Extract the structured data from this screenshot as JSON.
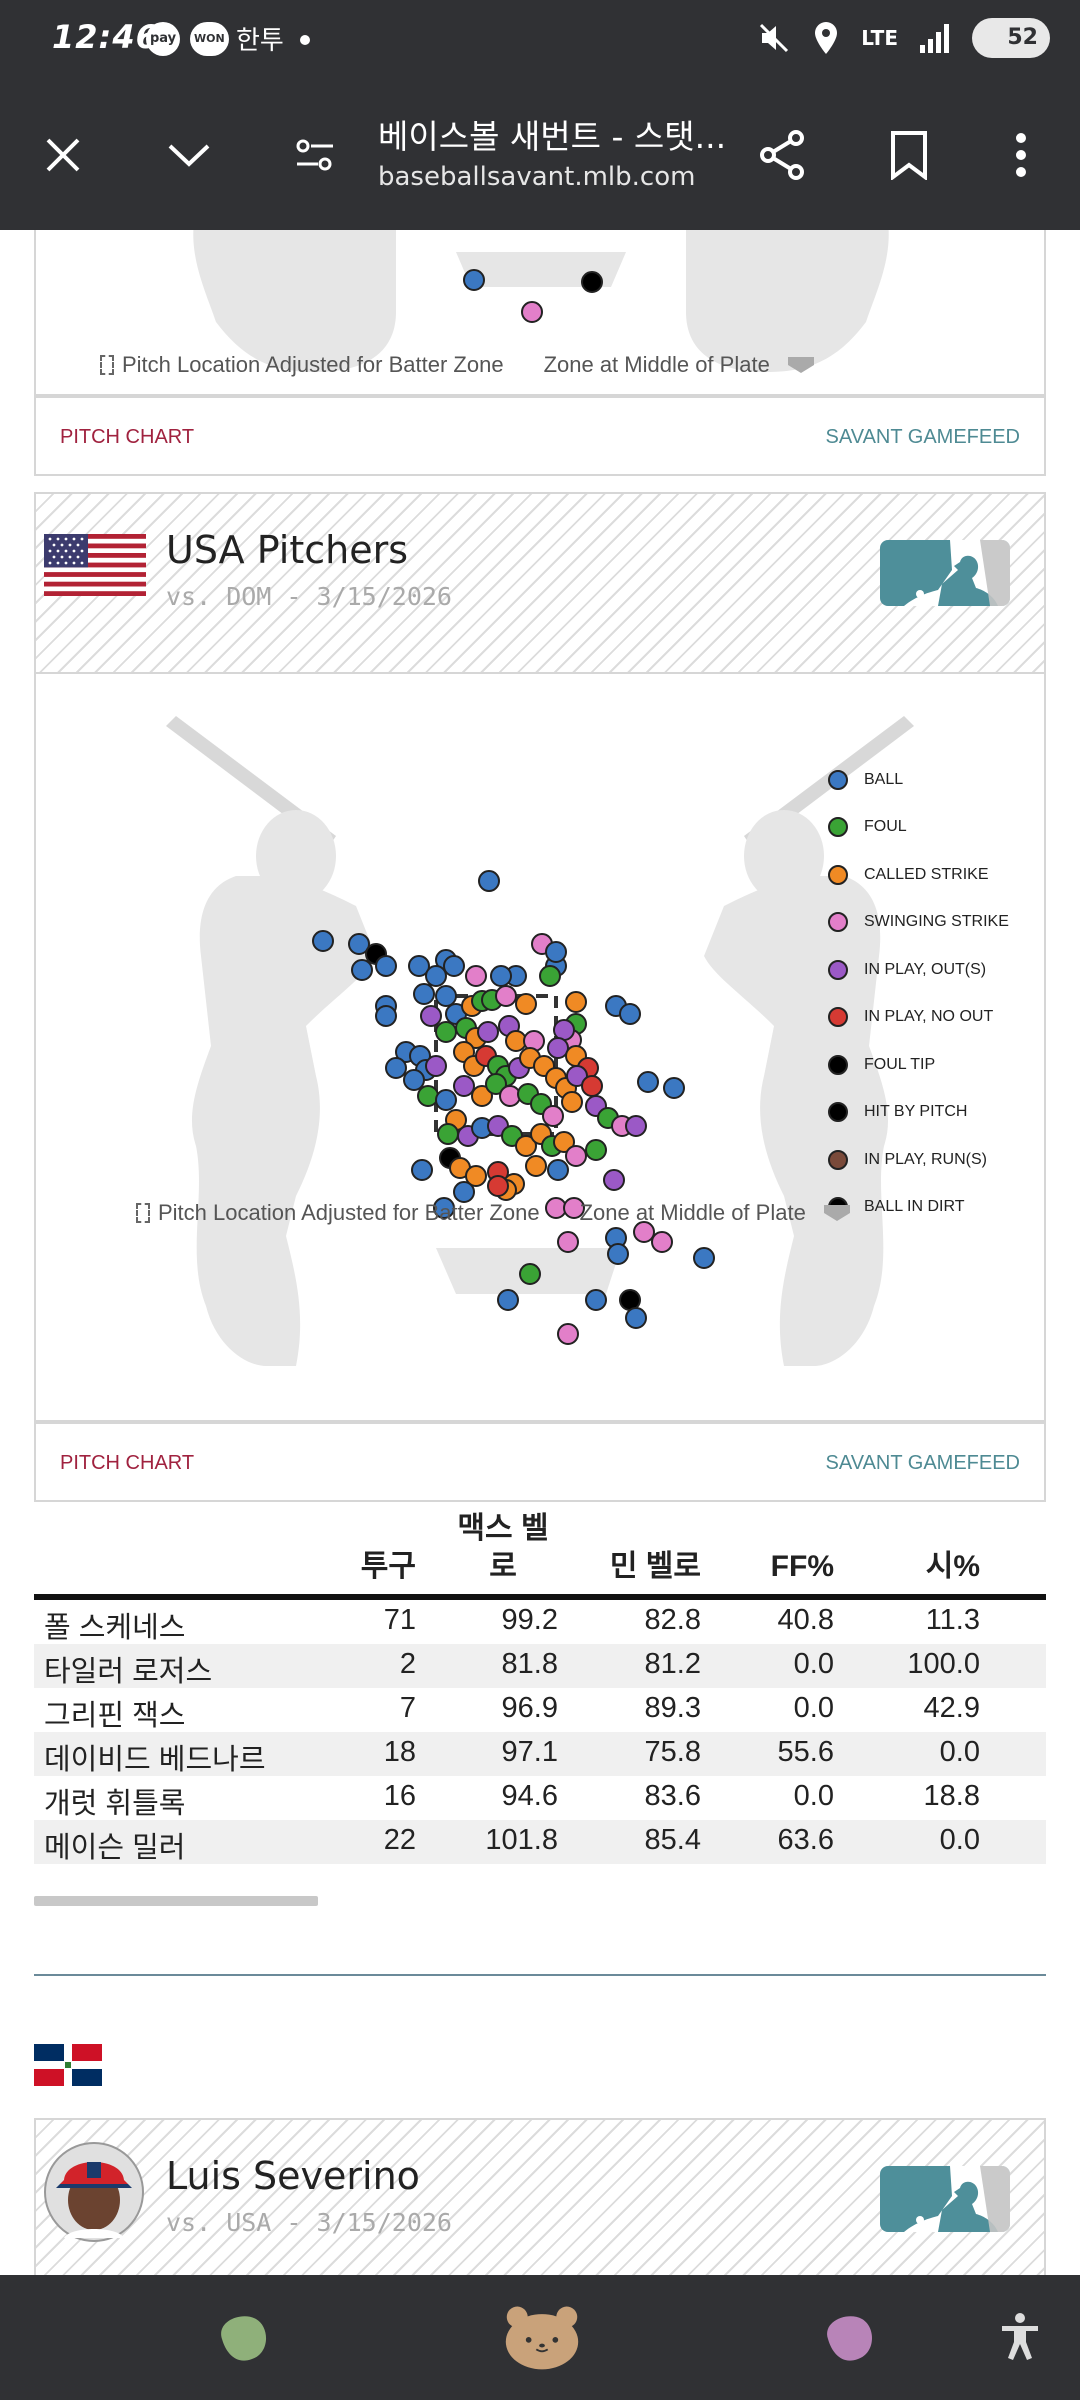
{
  "status_bar": {
    "time": "12:46",
    "pay_badge": "pay",
    "won_badge": "WON",
    "hantoo_badge": "한투",
    "network": "LTE",
    "battery": "52"
  },
  "browser": {
    "title": "베이스볼 새번트 - 스탯...",
    "url": "baseballsavant.mlb.com"
  },
  "top_card": {
    "zone_note_adjusted": "Pitch Location Adjusted for Batter Zone",
    "zone_note_middle": "Zone at Middle of Plate",
    "link_left": "PITCH CHART",
    "link_right": "SAVANT GAMEFEED"
  },
  "usa_card": {
    "title": "USA Pitchers",
    "subtitle": "vs. DOM - 3/15/2026",
    "legend": [
      {
        "label": "BALL",
        "color": "#3b78c2"
      },
      {
        "label": "FOUL",
        "color": "#3aa335"
      },
      {
        "label": "CALLED STRIKE",
        "color": "#f08a24"
      },
      {
        "label": "SWINGING STRIKE",
        "color": "#e27fc9"
      },
      {
        "label": "IN PLAY, OUT(S)",
        "color": "#9b59c6"
      },
      {
        "label": "IN PLAY, NO OUT",
        "color": "#d63a33"
      },
      {
        "label": "FOUL TIP",
        "color": "#000000"
      },
      {
        "label": "HIT BY PITCH",
        "color": "#000000"
      },
      {
        "label": "IN PLAY, RUN(S)",
        "color": "#7a4a3a"
      },
      {
        "label": "BALL IN DIRT",
        "color": "#000000"
      }
    ],
    "zone_note_adjusted": "Pitch Location Adjusted for Batter Zone",
    "zone_note_middle": "Zone at Middle of Plate",
    "link_left": "PITCH CHART",
    "link_right": "SAVANT GAMEFEED"
  },
  "stats_table": {
    "headers": [
      "투구",
      "맥스 벨로",
      "민 벨로",
      "FF%",
      "시%"
    ],
    "rows": [
      {
        "name": "폴 스케네스",
        "pitches": "71",
        "max_velo": "99.2",
        "min_velo": "82.8",
        "ff": "40.8",
        "si": "11.3"
      },
      {
        "name": "타일러 로저스",
        "pitches": "2",
        "max_velo": "81.8",
        "min_velo": "81.2",
        "ff": "0.0",
        "si": "100.0"
      },
      {
        "name": "그리핀 잭스",
        "pitches": "7",
        "max_velo": "96.9",
        "min_velo": "89.3",
        "ff": "0.0",
        "si": "42.9"
      },
      {
        "name": "데이비드 베드나르",
        "pitches": "18",
        "max_velo": "97.1",
        "min_velo": "75.8",
        "ff": "55.6",
        "si": "0.0"
      },
      {
        "name": "개럿 휘틀록",
        "pitches": "16",
        "max_velo": "94.6",
        "min_velo": "83.6",
        "ff": "0.0",
        "si": "18.8"
      },
      {
        "name": "메이슨 밀러",
        "pitches": "22",
        "max_velo": "101.8",
        "min_velo": "85.4",
        "ff": "63.6",
        "si": "0.0"
      }
    ]
  },
  "dom_card": {
    "title": "Luis Severino",
    "subtitle": "vs. USA - 3/15/2026"
  }
}
